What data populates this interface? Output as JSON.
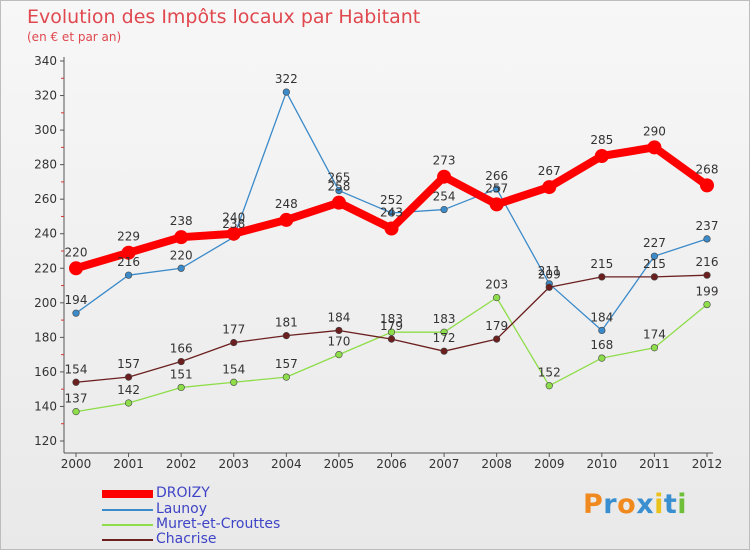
{
  "title": "Evolution des Impôts locaux par Habitant",
  "subtitle": "(en € et par an)",
  "logo": "Proxiti",
  "chart_data": {
    "type": "line",
    "title": "Evolution des Impôts locaux par Habitant",
    "subtitle": "(en € et par an)",
    "x": [
      2000,
      2001,
      2002,
      2003,
      2004,
      2005,
      2006,
      2007,
      2008,
      2009,
      2010,
      2011,
      2012
    ],
    "ylim": [
      120,
      340
    ],
    "yticks": [
      120,
      140,
      160,
      180,
      200,
      220,
      240,
      260,
      280,
      300,
      320,
      340
    ],
    "grid": false,
    "legend": "bottom-left",
    "series": [
      {
        "name": "DROIZY",
        "color": "#ff0000",
        "values": [
          220,
          229,
          238,
          240,
          248,
          258,
          243,
          273,
          257,
          267,
          285,
          290,
          268
        ]
      },
      {
        "name": "Launoy",
        "color": "#3b8ac9",
        "values": [
          194,
          216,
          220,
          238,
          322,
          265,
          252,
          254,
          266,
          211,
          184,
          227,
          237
        ]
      },
      {
        "name": "Muret-et-Crouttes",
        "color": "#8edd4a",
        "values": [
          137,
          142,
          151,
          154,
          157,
          170,
          183,
          183,
          203,
          152,
          168,
          174,
          199
        ]
      },
      {
        "name": "Chacrise",
        "color": "#6b1f1f",
        "values": [
          154,
          157,
          166,
          177,
          181,
          184,
          179,
          172,
          179,
          209,
          215,
          215,
          216
        ]
      }
    ]
  }
}
